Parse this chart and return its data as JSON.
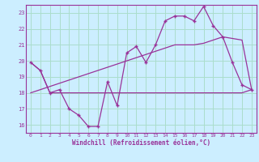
{
  "xlabel": "Windchill (Refroidissement éolien,°C)",
  "background_color": "#cceeff",
  "grid_color": "#aaddcc",
  "line_color": "#993399",
  "x_hours": [
    0,
    1,
    2,
    3,
    4,
    5,
    6,
    7,
    8,
    9,
    10,
    11,
    12,
    13,
    14,
    15,
    16,
    17,
    18,
    19,
    20,
    21,
    22,
    23
  ],
  "temp_line": [
    19.9,
    19.4,
    18.0,
    18.2,
    17.0,
    16.6,
    15.9,
    15.9,
    18.7,
    17.2,
    20.5,
    20.9,
    19.9,
    21.0,
    22.5,
    22.8,
    22.8,
    22.5,
    23.4,
    22.2,
    21.5,
    19.9,
    18.5,
    18.2
  ],
  "line2": [
    19.9,
    19.4,
    18.0,
    18.0,
    18.0,
    18.0,
    18.0,
    18.0,
    18.0,
    18.0,
    18.0,
    18.0,
    18.0,
    18.0,
    18.0,
    18.0,
    18.0,
    18.0,
    18.0,
    18.0,
    18.0,
    18.0,
    18.0,
    18.2
  ],
  "line3": [
    18.0,
    18.2,
    18.4,
    18.6,
    18.8,
    19.0,
    19.2,
    19.4,
    19.6,
    19.8,
    20.0,
    20.2,
    20.4,
    20.6,
    20.8,
    21.0,
    21.0,
    21.0,
    21.1,
    21.3,
    21.5,
    21.4,
    21.3,
    18.2
  ],
  "ylim": [
    15.5,
    23.5
  ],
  "yticks": [
    16,
    17,
    18,
    19,
    20,
    21,
    22,
    23
  ],
  "xlim": [
    -0.5,
    23.5
  ]
}
